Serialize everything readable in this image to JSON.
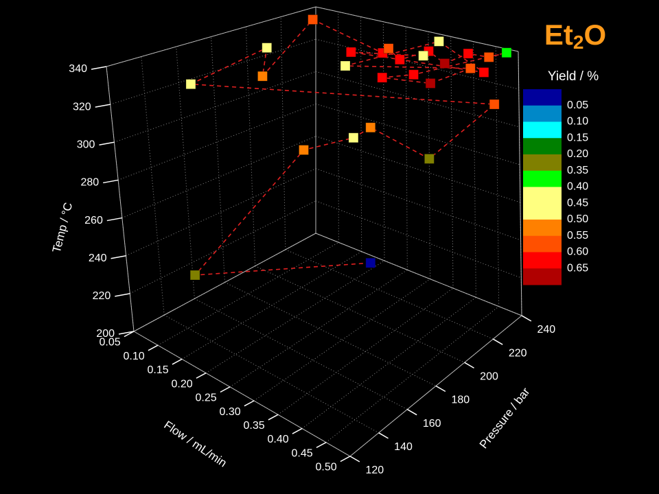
{
  "chart_data": {
    "type": "scatter3d",
    "title": [
      "Et",
      "2",
      "O"
    ],
    "x_label": "Flow / mL/min",
    "y_label": "Pressure / bar",
    "z_label": "Temp / °C",
    "xlim": [
      0.05,
      0.5
    ],
    "ylim": [
      120,
      240
    ],
    "zlim": [
      200,
      340
    ],
    "xticks": [
      0.05,
      {
        "value": 0.1,
        "label": "0.10"
      },
      0.15,
      {
        "value": 0.2,
        "label": "0.20"
      },
      0.25,
      {
        "value": 0.3,
        "label": "0.30"
      },
      0.35,
      {
        "value": 0.4,
        "label": "0.40"
      },
      0.45,
      {
        "value": 0.5,
        "label": "0.50"
      }
    ],
    "yticks": [
      120,
      140,
      160,
      180,
      200,
      220,
      240
    ],
    "zticks": [
      200,
      220,
      240,
      260,
      280,
      300,
      320,
      340
    ],
    "grid": true,
    "line_color": "#e02020",
    "x": [
      0.3,
      0.14,
      0.35,
      0.3,
      0.32,
      0.365,
      0.5,
      0.14,
      0.12,
      0.15,
      0.1,
      0.3,
      0.28,
      0.32,
      0.35,
      0.4,
      0.42,
      0.45,
      0.48,
      0.38,
      0.33,
      0.4,
      0.44,
      0.27,
      0.35,
      0.46,
      0.25,
      0.37
    ],
    "y": [
      200,
      135,
      140,
      190,
      195,
      220,
      222,
      140,
      192,
      180,
      225,
      210,
      220,
      215,
      225,
      220,
      230,
      235,
      238,
      205,
      200,
      210,
      225,
      195,
      232,
      228,
      205,
      215
    ],
    "z": [
      230,
      235,
      315,
      300,
      305,
      282,
      319,
      332,
      335,
      325,
      340,
      338,
      336,
      334,
      337,
      335,
      338,
      336,
      339,
      333,
      330,
      328,
      333,
      334,
      340,
      331,
      337,
      339
    ],
    "values": [
      0.05,
      0.35,
      0.55,
      0.45,
      0.55,
      0.35,
      0.6,
      0.45,
      0.45,
      0.55,
      0.6,
      0.65,
      0.6,
      0.65,
      0.65,
      0.7,
      0.65,
      0.6,
      0.4,
      0.65,
      0.65,
      0.7,
      0.6,
      0.45,
      0.5,
      0.65,
      0.65,
      0.45
    ],
    "colorbar": {
      "label": "Yield / %",
      "colors": [
        "#00009c",
        "#0088c8",
        "#00ffff",
        "#008000",
        "#808000",
        "#00ff00",
        "#ffff80",
        "#ffff80",
        "#ff8000",
        "#ff5000",
        "#ff0000",
        "#b00000"
      ],
      "ticks": [
        0.05,
        {
          "value": 0.1,
          "label": "0.10"
        },
        0.15,
        {
          "value": 0.2,
          "label": "0.20"
        },
        0.35,
        {
          "value": 0.4,
          "label": "0.40"
        },
        0.45,
        {
          "value": 0.5,
          "label": "0.50"
        },
        0.55,
        {
          "value": 0.6,
          "label": "0.60"
        },
        0.65
      ]
    }
  }
}
